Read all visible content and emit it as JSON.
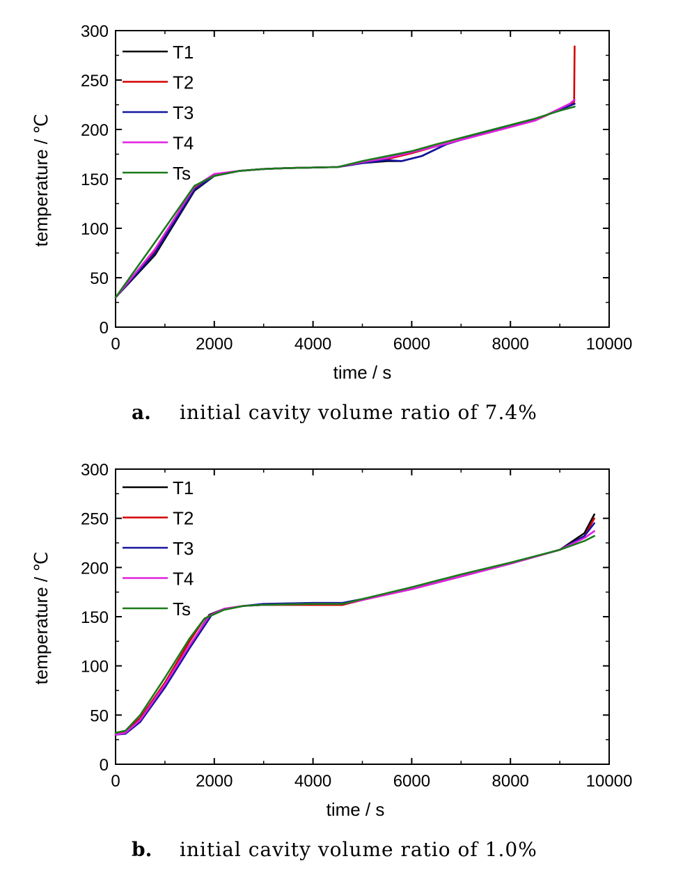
{
  "chart_data": [
    {
      "type": "line",
      "xlabel": "time / s",
      "ylabel": "temperature / ℃",
      "xlim": [
        0,
        10000
      ],
      "ylim": [
        0,
        300
      ],
      "xticks": [
        "0",
        "2000",
        "4000",
        "6000",
        "8000",
        "10000"
      ],
      "yticks": [
        "0",
        "50",
        "100",
        "150",
        "200",
        "250",
        "300"
      ],
      "legend_position": "top-left",
      "caption_letter": "a.",
      "caption_text": "initial cavity volume ratio of 7.4%",
      "series": [
        {
          "name": "T1",
          "color": "#000000",
          "points": [
            [
              0,
              30
            ],
            [
              800,
              73
            ],
            [
              1600,
              138
            ],
            [
              2000,
              153
            ],
            [
              2500,
              158
            ],
            [
              3000,
              160
            ],
            [
              3500,
              161
            ],
            [
              4500,
              162
            ],
            [
              5000,
              166
            ],
            [
              5500,
              168
            ],
            [
              5800,
              168
            ],
            [
              6200,
              173
            ],
            [
              6700,
              185
            ],
            [
              7500,
              197
            ],
            [
              8500,
              210
            ],
            [
              9200,
              224
            ],
            [
              9300,
              226
            ]
          ]
        },
        {
          "name": "T2",
          "color": "#d40000",
          "points": [
            [
              0,
              30
            ],
            [
              800,
              77
            ],
            [
              1600,
              140
            ],
            [
              2000,
              154
            ],
            [
              2500,
              158
            ],
            [
              3000,
              160
            ],
            [
              3500,
              161
            ],
            [
              4500,
              162
            ],
            [
              5000,
              166
            ],
            [
              5500,
              170
            ],
            [
              6000,
              176
            ],
            [
              6500,
              183
            ],
            [
              7500,
              196
            ],
            [
              8500,
              209
            ],
            [
              9200,
              225
            ],
            [
              9290,
              228
            ],
            [
              9300,
              284
            ]
          ]
        },
        {
          "name": "T3",
          "color": "#1414a0",
          "points": [
            [
              0,
              30
            ],
            [
              800,
              75
            ],
            [
              1600,
              139
            ],
            [
              2000,
              153
            ],
            [
              2500,
              158
            ],
            [
              3000,
              160
            ],
            [
              3500,
              161
            ],
            [
              4500,
              162
            ],
            [
              5000,
              166
            ],
            [
              5500,
              169
            ],
            [
              5800,
              168
            ],
            [
              6200,
              173
            ],
            [
              6700,
              185
            ],
            [
              7500,
              197
            ],
            [
              8500,
              210
            ],
            [
              9200,
              224
            ],
            [
              9300,
              226
            ]
          ]
        },
        {
          "name": "T4",
          "color": "#e020e0",
          "points": [
            [
              0,
              30
            ],
            [
              800,
              79
            ],
            [
              1600,
              142
            ],
            [
              2000,
              155
            ],
            [
              2500,
              158
            ],
            [
              3000,
              160
            ],
            [
              3500,
              161
            ],
            [
              4500,
              162
            ],
            [
              5000,
              167
            ],
            [
              5500,
              171
            ],
            [
              6000,
              177
            ],
            [
              6500,
              183
            ],
            [
              7500,
              196
            ],
            [
              8500,
              209
            ],
            [
              9200,
              226
            ],
            [
              9300,
              230
            ]
          ]
        },
        {
          "name": "Ts",
          "color": "#1a7a1a",
          "points": [
            [
              0,
              30
            ],
            [
              800,
              86
            ],
            [
              1600,
              143
            ],
            [
              2000,
              153
            ],
            [
              2500,
              158
            ],
            [
              3000,
              160
            ],
            [
              3500,
              161
            ],
            [
              4500,
              162
            ],
            [
              5000,
              168
            ],
            [
              5500,
              173
            ],
            [
              6000,
              178
            ],
            [
              6500,
              185
            ],
            [
              7500,
              198
            ],
            [
              8500,
              211
            ],
            [
              9000,
              219
            ],
            [
              9300,
              223
            ]
          ]
        }
      ]
    },
    {
      "type": "line",
      "xlabel": "time / s",
      "ylabel": "temperature / ℃",
      "xlim": [
        0,
        10000
      ],
      "ylim": [
        0,
        300
      ],
      "xticks": [
        "0",
        "2000",
        "4000",
        "6000",
        "8000",
        "10000"
      ],
      "yticks": [
        "0",
        "50",
        "100",
        "150",
        "200",
        "250",
        "300"
      ],
      "legend_position": "top-left",
      "caption_letter": "b.",
      "caption_text": "initial cavity volume ratio of 1.0%",
      "series": [
        {
          "name": "T1",
          "color": "#000000",
          "points": [
            [
              0,
              30
            ],
            [
              200,
              32
            ],
            [
              500,
              45
            ],
            [
              1000,
              80
            ],
            [
              1500,
              120
            ],
            [
              1900,
              152
            ],
            [
              2200,
              158
            ],
            [
              2600,
              161
            ],
            [
              3000,
              162
            ],
            [
              4000,
              162
            ],
            [
              4600,
              162
            ],
            [
              5000,
              167
            ],
            [
              6000,
              178
            ],
            [
              7000,
              191
            ],
            [
              8000,
              204
            ],
            [
              9000,
              218
            ],
            [
              9500,
              235
            ],
            [
              9700,
              254
            ]
          ]
        },
        {
          "name": "T2",
          "color": "#d40000",
          "points": [
            [
              0,
              30
            ],
            [
              200,
              33
            ],
            [
              500,
              47
            ],
            [
              1000,
              83
            ],
            [
              1500,
              125
            ],
            [
              1800,
              148
            ],
            [
              2200,
              158
            ],
            [
              2600,
              161
            ],
            [
              3000,
              162
            ],
            [
              4000,
              162
            ],
            [
              4600,
              162
            ],
            [
              5000,
              167
            ],
            [
              6000,
              178
            ],
            [
              7000,
              191
            ],
            [
              8000,
              204
            ],
            [
              9000,
              218
            ],
            [
              9500,
              232
            ],
            [
              9700,
              250
            ]
          ]
        },
        {
          "name": "T3",
          "color": "#1414a0",
          "points": [
            [
              0,
              30
            ],
            [
              200,
              31
            ],
            [
              500,
              43
            ],
            [
              1000,
              78
            ],
            [
              1500,
              118
            ],
            [
              1950,
              152
            ],
            [
              2200,
              158
            ],
            [
              2600,
              161
            ],
            [
              3000,
              163
            ],
            [
              4000,
              164
            ],
            [
              4600,
              164
            ],
            [
              5000,
              168
            ],
            [
              6000,
              178
            ],
            [
              7000,
              191
            ],
            [
              8000,
              204
            ],
            [
              9000,
              218
            ],
            [
              9500,
              232
            ],
            [
              9700,
              245
            ]
          ]
        },
        {
          "name": "T4",
          "color": "#e020e0",
          "points": [
            [
              0,
              30
            ],
            [
              200,
              32
            ],
            [
              500,
              45
            ],
            [
              1000,
              81
            ],
            [
              1500,
              121
            ],
            [
              1900,
              151
            ],
            [
              2200,
              158
            ],
            [
              2600,
              161
            ],
            [
              3000,
              162
            ],
            [
              4000,
              163
            ],
            [
              4600,
              163
            ],
            [
              5000,
              167
            ],
            [
              6000,
              178
            ],
            [
              7000,
              191
            ],
            [
              8000,
              204
            ],
            [
              9000,
              218
            ],
            [
              9500,
              230
            ],
            [
              9700,
              237
            ]
          ]
        },
        {
          "name": "Ts",
          "color": "#1a7a1a",
          "points": [
            [
              0,
              32
            ],
            [
              200,
              34
            ],
            [
              500,
              50
            ],
            [
              1000,
              88
            ],
            [
              1500,
              128
            ],
            [
              1800,
              148
            ],
            [
              2200,
              157
            ],
            [
              2600,
              161
            ],
            [
              3000,
              162
            ],
            [
              4000,
              163
            ],
            [
              4600,
              163
            ],
            [
              5000,
              168
            ],
            [
              6000,
              180
            ],
            [
              7000,
              193
            ],
            [
              8000,
              205
            ],
            [
              9000,
              218
            ],
            [
              9500,
              227
            ],
            [
              9700,
              232
            ]
          ]
        }
      ]
    }
  ]
}
